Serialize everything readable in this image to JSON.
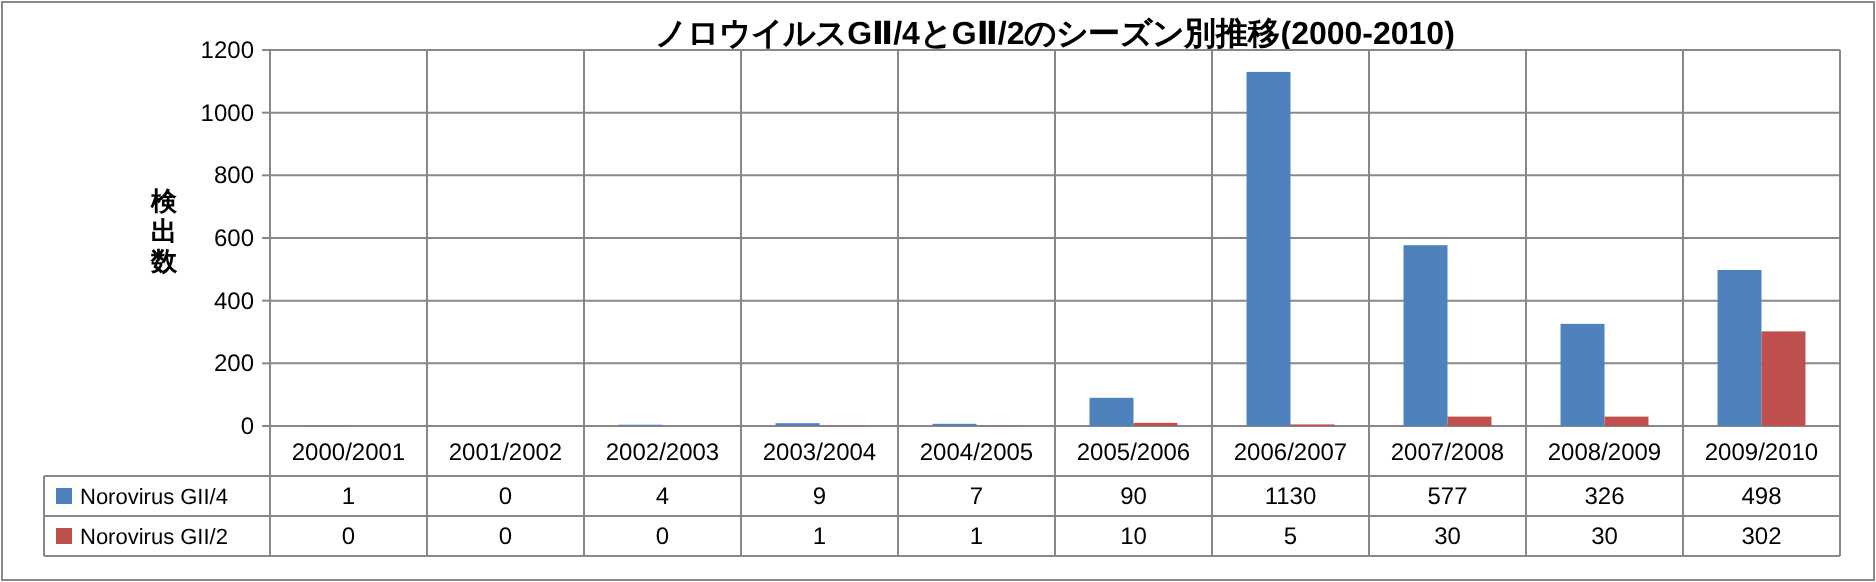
{
  "chart_data": {
    "type": "bar",
    "title": "ノロウイルスGⅡ/4とGⅡ/2のシーズン別推移(2000-2010)",
    "ylabel": "検出数",
    "categories": [
      "2000/2001",
      "2001/2002",
      "2002/2003",
      "2003/2004",
      "2004/2005",
      "2005/2006",
      "2006/2007",
      "2007/2008",
      "2008/2009",
      "2009/2010"
    ],
    "series": [
      {
        "name": "Norovirus GII/4",
        "color": "#4f81bd",
        "values": [
          1,
          0,
          4,
          9,
          7,
          90,
          1130,
          577,
          326,
          498
        ]
      },
      {
        "name": "Norovirus GII/2",
        "color": "#c0504d",
        "values": [
          0,
          0,
          0,
          1,
          1,
          10,
          5,
          30,
          30,
          302
        ]
      }
    ],
    "ylim": [
      0,
      1200
    ],
    "yticks": [
      0,
      200,
      400,
      600,
      800,
      1000,
      1200
    ],
    "grid": "y",
    "data_labels": true,
    "legend": "bottom"
  }
}
